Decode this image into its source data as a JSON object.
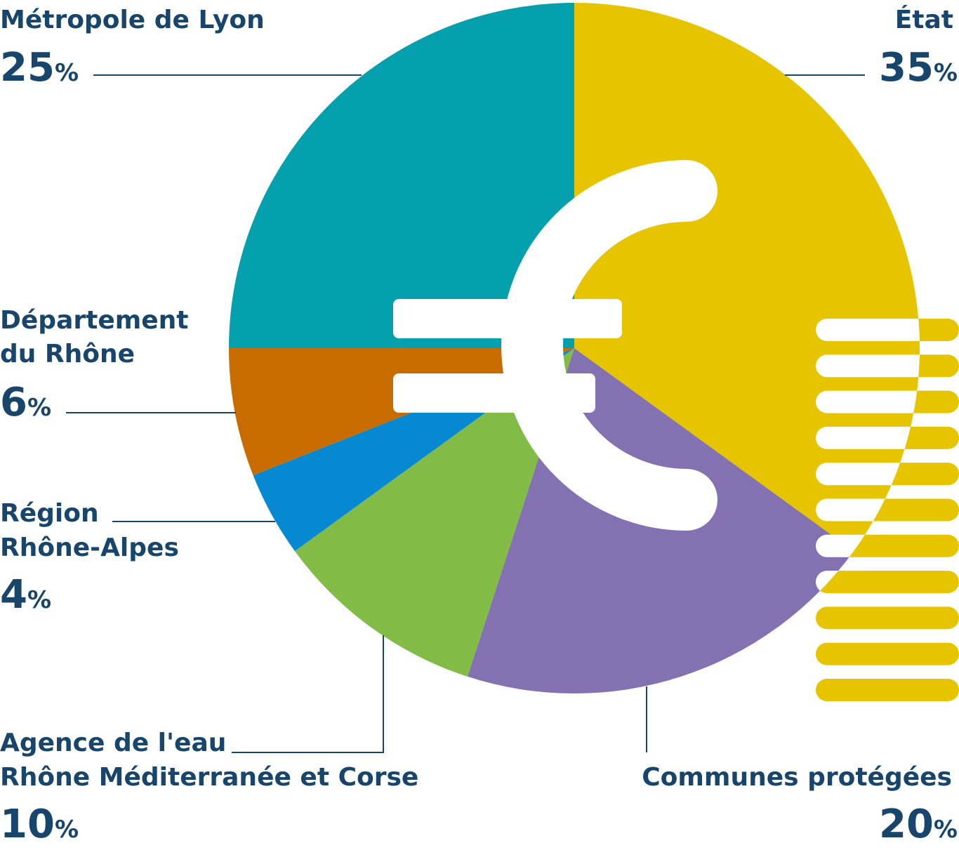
{
  "chart_data": {
    "type": "pie",
    "title": "",
    "slices": [
      {
        "label": "État",
        "value": 35,
        "color": "#e6c400"
      },
      {
        "label": "Communes protégées",
        "value": 20,
        "color": "#8471b1"
      },
      {
        "label": "Agence de l'eau Rhône Méditerranée et Corse",
        "value": 10,
        "color": "#83bb47"
      },
      {
        "label": "Région Rhône-Alpes",
        "value": 4,
        "color": "#0689d1"
      },
      {
        "label": "Département du Rhône",
        "value": 6,
        "color": "#c96c00"
      },
      {
        "label": "Métropole de Lyon",
        "value": 25,
        "color": "#04a0ad"
      }
    ],
    "center_icon": "euro-icon",
    "decoration_color": "#e6c400"
  },
  "labels": {
    "metropole": {
      "name_lines": [
        "Métropole de Lyon"
      ],
      "number": "25",
      "percent_sign": "%"
    },
    "etat": {
      "name_lines": [
        "État"
      ],
      "number": "35",
      "percent_sign": "%"
    },
    "departement": {
      "name_lines": [
        "Département",
        "du Rhône"
      ],
      "number": "6",
      "percent_sign": "%"
    },
    "region": {
      "name_lines": [
        "Région",
        "Rhône-Alpes"
      ],
      "number": "4",
      "percent_sign": "%"
    },
    "agence": {
      "name_lines": [
        "Agence de l'eau",
        "Rhône Méditerranée et Corse"
      ],
      "number": "10",
      "percent_sign": "%"
    },
    "communes": {
      "name_lines": [
        "Communes protégées"
      ],
      "number": "20",
      "percent_sign": "%"
    }
  }
}
